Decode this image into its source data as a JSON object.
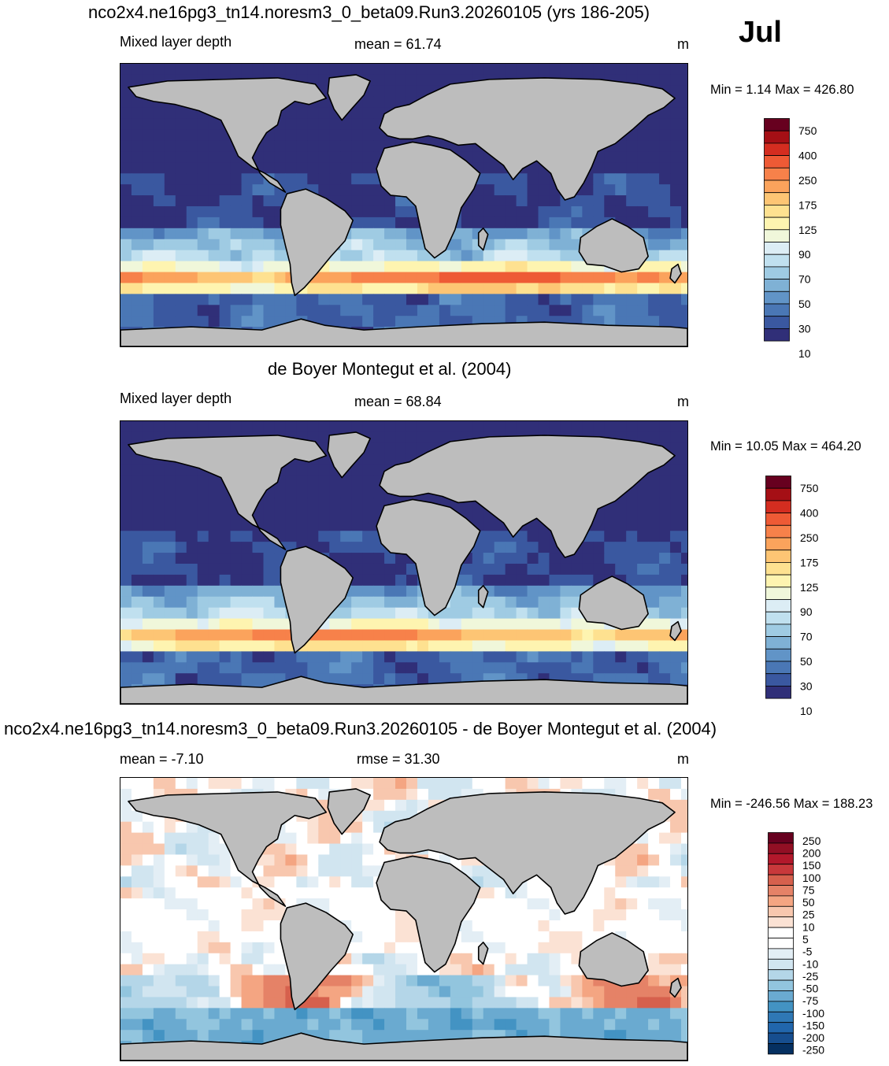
{
  "header": {
    "title": "nco2x4.ne16pg3_tn14.noresm3_0_beta09.Run3.20260105 (yrs 186-205)",
    "month": "Jul"
  },
  "panels": [
    {
      "variable": "Mixed layer depth",
      "stat_text": "mean =  61.74",
      "units": "m",
      "minmax": "Min =   1.14 Max = 426.80",
      "scale": "abs"
    },
    {
      "title": "de Boyer Montegut et al. (2004)",
      "variable": "Mixed layer depth",
      "stat_text": "mean =  68.84",
      "units": "m",
      "minmax": "Min =  10.05 Max = 464.20",
      "scale": "abs"
    },
    {
      "title": "nco2x4.ne16pg3_tn14.noresm3_0_beta09.Run3.20260105 - de Boyer Montegut et al. (2004)",
      "stat_text": "mean =  -7.10",
      "rmse_text": "rmse =  31.30",
      "units": "m",
      "minmax": "Min = -246.56 Max = 188.23",
      "scale": "diff"
    }
  ],
  "colorbars": {
    "abs": {
      "labels": [
        "750",
        "400",
        "250",
        "175",
        "125",
        "90",
        "70",
        "50",
        "30",
        "10"
      ],
      "colors": [
        "#67001f",
        "#a50f15",
        "#d42d20",
        "#ee5a35",
        "#f7814a",
        "#fba35c",
        "#fdc574",
        "#fee190",
        "#fef4b0",
        "#f0f7da",
        "#dcedf5",
        "#c0e0ef",
        "#9fcbe3",
        "#7fb1d5",
        "#6194c7",
        "#4a77b5",
        "#3a58a0",
        "#302f78"
      ]
    },
    "diff": {
      "labels": [
        "250",
        "200",
        "150",
        "100",
        "75",
        "50",
        "25",
        "10",
        "5",
        "-5",
        "-10",
        "-25",
        "-50",
        "-75",
        "-100",
        "-150",
        "-200",
        "-250"
      ],
      "colors": [
        "#67001f",
        "#920f24",
        "#b2182b",
        "#c8383b",
        "#d6604d",
        "#e58267",
        "#f4a582",
        "#f8c7ae",
        "#fbe2d4",
        "#ffffff",
        "#ffffff",
        "#e3eef5",
        "#d1e5f0",
        "#b4d6e8",
        "#92c5de",
        "#6aaad0",
        "#4393c3",
        "#2f78b5",
        "#2166ac",
        "#164e8f",
        "#053061"
      ]
    }
  },
  "colors": {
    "land": "#bdbdbd",
    "coast": "#000000"
  }
}
